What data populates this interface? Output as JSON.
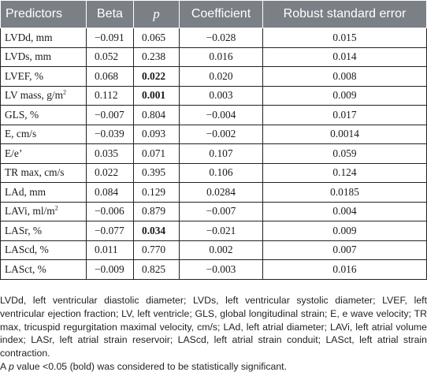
{
  "table": {
    "headers": [
      "Predictors",
      "Beta",
      "p",
      "Coefficient",
      "Robust standard error"
    ],
    "rows": [
      {
        "predictor": "LVDd, mm",
        "sup": "",
        "beta": "−0.091",
        "p": "0.065",
        "p_bold": false,
        "coef": "−0.028",
        "se": "0.015"
      },
      {
        "predictor": "LVDs, mm",
        "sup": "",
        "beta": "0.052",
        "p": "0.238",
        "p_bold": false,
        "coef": "0.016",
        "se": "0.014"
      },
      {
        "predictor": "LVEF, %",
        "sup": "",
        "beta": "0.068",
        "p": "0.022",
        "p_bold": true,
        "coef": "0.020",
        "se": "0.008"
      },
      {
        "predictor": "LV mass, g/m",
        "sup": "2",
        "beta": "0.112",
        "p": "0.001",
        "p_bold": true,
        "coef": "0.003",
        "se": "0.009"
      },
      {
        "predictor": "GLS, %",
        "sup": "",
        "beta": "−0.007",
        "p": "0.804",
        "p_bold": false,
        "coef": "−0.004",
        "se": "0.017"
      },
      {
        "predictor": "E, cm/s",
        "sup": "",
        "beta": "−0.039",
        "p": "0.093",
        "p_bold": false,
        "coef": "−0.002",
        "se": "0.0014"
      },
      {
        "predictor": "E/e’",
        "sup": "",
        "beta": "0.035",
        "p": "0.071",
        "p_bold": false,
        "coef": "0.107",
        "se": "0.059"
      },
      {
        "predictor": "TR max, cm/s",
        "sup": "",
        "beta": "0.022",
        "p": "0.395",
        "p_bold": false,
        "coef": "0.106",
        "se": "0.124"
      },
      {
        "predictor": "LAd, mm",
        "sup": "",
        "beta": "0.084",
        "p": "0.129",
        "p_bold": false,
        "coef": "0.0284",
        "se": "0.0185"
      },
      {
        "predictor": "LAVi, ml/m",
        "sup": "2",
        "beta": "−0.006",
        "p": "0.879",
        "p_bold": false,
        "coef": "−0.007",
        "se": "0.004"
      },
      {
        "predictor": "LASr, %",
        "sup": "",
        "beta": "−0.077",
        "p": "0.034",
        "p_bold": true,
        "coef": "−0.021",
        "se": "0.009"
      },
      {
        "predictor": "LAScd, %",
        "sup": "",
        "beta": "0.011",
        "p": "0.770",
        "p_bold": false,
        "coef": "0.002",
        "se": "0.007"
      },
      {
        "predictor": "LASct, %",
        "sup": "",
        "beta": "−0.009",
        "p": "0.825",
        "p_bold": false,
        "coef": "−0.003",
        "se": "0.016"
      }
    ]
  },
  "footnote": {
    "abbreviations": "LVDd, left ventricular diastolic diameter; LVDs, left ventricular systolic diameter; LVEF, left ventricular ejection fraction; LV, left ventricle; GLS, global longitudinal strain; E, e wave velocity; TR max, tricuspid regurgitation maximal velocity, cm/s; LAd, left atrial diameter; LAVi, left atrial volume index; LASr, left atrial strain reservoir; LAScd, left atrial strain conduit; LASct, left atrial strain contraction.",
    "sig_prefix": "A",
    "sig_p": "p",
    "sig_rest": "value <0.05 (bold) was considered to be statistically significant."
  }
}
